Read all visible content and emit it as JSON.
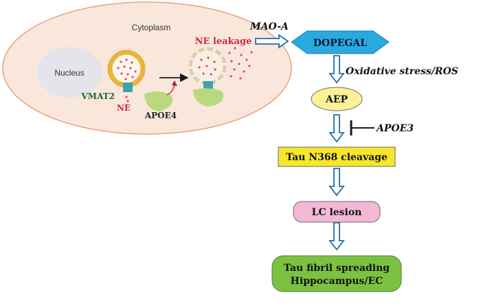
{
  "cell": {
    "compartment": "Cytoplasm",
    "nucleus": "Nucleus",
    "transporter": "VMAT2",
    "transmitter": "NE",
    "apoe_variant": "APOE4",
    "leakage": "NE leakage"
  },
  "pathway": {
    "enzyme": "MAO-A",
    "metabolite": "DOPEGAL",
    "stress": "Oxidative stress/ROS",
    "protease": "AEP",
    "inhibitor": "APOE3",
    "cleavage": "Tau N368 cleavage",
    "lesion": "LC lesion",
    "outcome_line1": "Tau fibril spreading",
    "outcome_line2": "Hippocampus/EC"
  },
  "colors": {
    "cytoplasm_fill": "#f9e7dc",
    "cytoplasm_stroke": "#e6a27d",
    "nucleus_fill": "#e3e5ea",
    "vesicle_ring": "#eab33c",
    "vesicle_fill": "#fdf7e9",
    "transporter": "#3aa5ad",
    "dots": "#e0477a",
    "apoe": "#b9d97e",
    "dopegal": "#29a9e0",
    "aep": "#fbf196",
    "cleavage": "#f7e62c",
    "lesion": "#f3b8d5",
    "outcome": "#7cc242",
    "flow_arrow": "#1e6ea8",
    "red_text": "#d2263f",
    "green_text": "#1d6b34"
  }
}
